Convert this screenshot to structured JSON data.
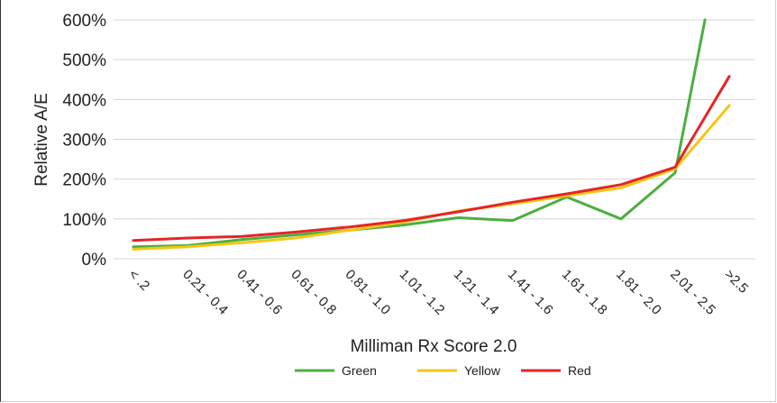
{
  "chart_data": {
    "type": "line",
    "title": "",
    "xlabel": "Milliman Rx Score 2.0",
    "ylabel": "Relative A/E",
    "categories": [
      "< .2",
      "0.21 - 0.4",
      "0.41 - 0.6",
      "0.61 - 0.8",
      "0.81 - 1.0",
      "1.01 - 1.2",
      "1.21 - 1.4",
      "1.41 - 1.6",
      "1.61 - 1.8",
      "1.81 - 2.0",
      "2.01 - 2.5",
      ">2.5"
    ],
    "y_ticks": [
      "0%",
      "100%",
      "200%",
      "300%",
      "400%",
      "500%",
      "600%"
    ],
    "ylim": [
      0,
      600
    ],
    "grid": true,
    "legend_position": "bottom",
    "series": [
      {
        "name": "Green",
        "color": "#4caf3f",
        "points": [
          [
            0,
            30
          ],
          [
            1,
            33
          ],
          [
            2,
            48
          ],
          [
            3,
            60
          ],
          [
            4,
            72
          ],
          [
            5,
            85
          ],
          [
            6,
            103
          ],
          [
            7,
            96
          ],
          [
            8,
            155
          ],
          [
            9,
            100
          ],
          [
            10,
            216
          ],
          [
            10.55,
            600
          ]
        ]
      },
      {
        "name": "Yellow",
        "color": "#f6c615",
        "points": [
          [
            0,
            24
          ],
          [
            1,
            30
          ],
          [
            2,
            40
          ],
          [
            3,
            52
          ],
          [
            4,
            72
          ],
          [
            5,
            92
          ],
          [
            6,
            120
          ],
          [
            7,
            138
          ],
          [
            8,
            158
          ],
          [
            9,
            178
          ],
          [
            10,
            226
          ],
          [
            11,
            385
          ]
        ]
      },
      {
        "name": "Red",
        "color": "#e42527",
        "points": [
          [
            0,
            46
          ],
          [
            1,
            52
          ],
          [
            2,
            56
          ],
          [
            3,
            67
          ],
          [
            4,
            80
          ],
          [
            5,
            96
          ],
          [
            6,
            118
          ],
          [
            7,
            142
          ],
          [
            8,
            163
          ],
          [
            9,
            186
          ],
          [
            10,
            230
          ],
          [
            11,
            458
          ]
        ]
      }
    ]
  }
}
